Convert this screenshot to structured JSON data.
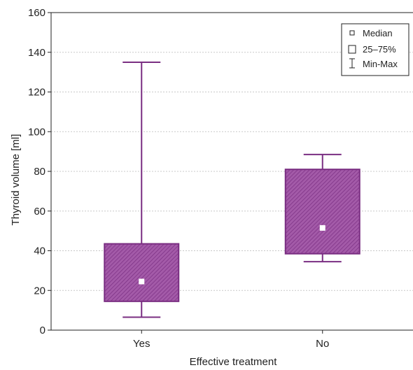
{
  "chart_data": {
    "type": "boxplot",
    "title": "",
    "xlabel": "Effective treatment",
    "ylabel": "Thyroid volume [ml]",
    "ylim": [
      0,
      160
    ],
    "yticks": [
      0,
      20,
      40,
      60,
      80,
      100,
      120,
      140,
      160
    ],
    "grid": true,
    "legend_position": "top-right",
    "categories": [
      "Yes",
      "No"
    ],
    "boxes": [
      {
        "category": "Yes",
        "min": 6.5,
        "q1": 14.5,
        "median": 24.5,
        "q3": 43.5,
        "max": 135
      },
      {
        "category": "No",
        "min": 34.5,
        "q1": 38.5,
        "median": 51.5,
        "q3": 81,
        "max": 88.5
      }
    ],
    "legend": [
      {
        "symbol": "median-marker",
        "label": "Median"
      },
      {
        "symbol": "box",
        "label": "25–75%"
      },
      {
        "symbol": "whisker",
        "label": "Min-Max"
      }
    ],
    "colors": {
      "box_fill": "#a35aa8",
      "box_stroke": "#7a2e82",
      "whisker": "#7a2e82",
      "grid": "#c8c8c8"
    }
  }
}
